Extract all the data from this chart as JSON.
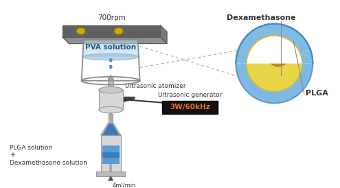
{
  "bg_color": "#ffffff",
  "labels": {
    "flow_rate": "4ml/min",
    "dex_solution": "Dexamethasone solution",
    "plus": "+",
    "plga_solution": "PLGA solution",
    "generator_text": "3W/60kHz",
    "ultrasonic_gen": "Ultrasonic generator",
    "atomizer": "Ultrasonic atomizer",
    "pva": "PVA solution",
    "rpm": "700rpm",
    "plga_label": "PLGA",
    "dex_label": "Dexamethasone"
  },
  "syringe_body": "#d8d8d8",
  "syringe_liquid": "#5b9bd5",
  "syringe_liquid2": "#3a7ab5",
  "tube_color": "#444444",
  "generator_box": "#1a1a1a",
  "generator_text_color": "#e87020",
  "atomizer_body": "#cccccc",
  "beaker_water": "#b8d4e8",
  "beaker_water2": "#8ab8d8",
  "beaker_outline": "#888888",
  "platform_top": "#909090",
  "platform_front": "#606060",
  "platform_side": "#787878",
  "knob_color": "#d4a800",
  "droplet_color": "#5b9bd5",
  "sphere_blue_outer": "#8cc4e0",
  "sphere_blue_mid": "#6aafe0",
  "sphere_blue_dark": "#4a8abf",
  "sphere_yellow": "#f0d840",
  "sphere_yellow2": "#e8c020",
  "sphere_core": "#c8900a",
  "sphere_core2": "#a07010",
  "dashed_color": "#aaaaaa",
  "text_color": "#333333",
  "label_line_color": "#888888",
  "wire_color": "#333333"
}
